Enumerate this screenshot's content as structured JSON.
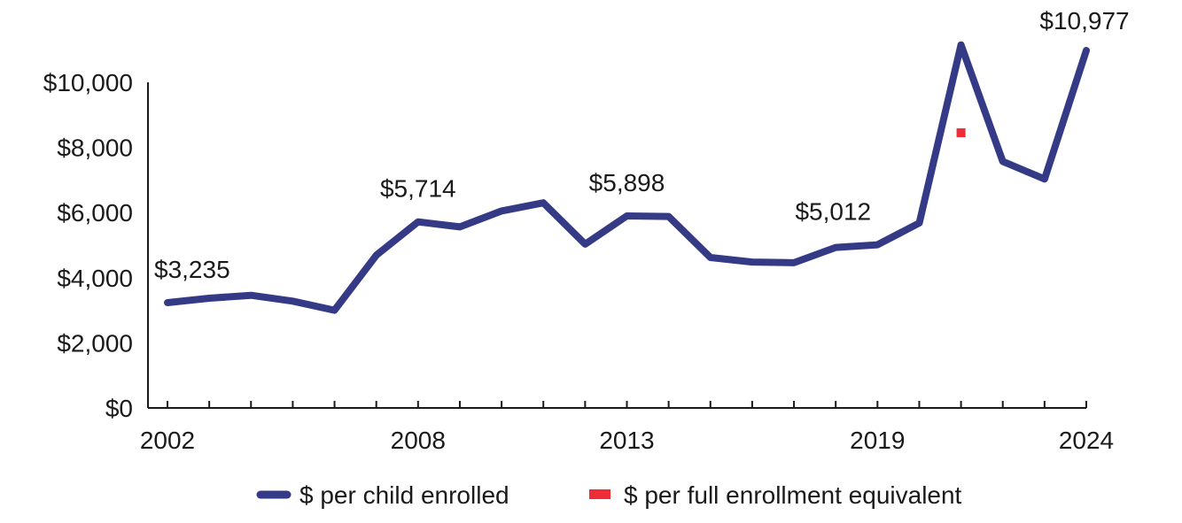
{
  "chart_data": {
    "type": "line",
    "x": [
      2002,
      2003,
      2004,
      2005,
      2006,
      2007,
      2008,
      2009,
      2010,
      2011,
      2012,
      2013,
      2014,
      2015,
      2016,
      2017,
      2018,
      2019,
      2020,
      2021,
      2022,
      2023,
      2024
    ],
    "series": [
      {
        "name": "$ per child enrolled",
        "color": "#353a87",
        "values": [
          3235,
          3370,
          3460,
          3280,
          3000,
          4690,
          5714,
          5560,
          6050,
          6300,
          5030,
          5898,
          5880,
          4620,
          4480,
          4460,
          4930,
          5012,
          5680,
          11150,
          7570,
          7030,
          10977
        ]
      },
      {
        "name": "$ per full enrollment equivalent",
        "color": "#ee2d36",
        "points": [
          {
            "x": 2021,
            "y": 8450
          }
        ]
      }
    ],
    "y_ticks": [
      "$0",
      "$2,000",
      "$4,000",
      "$6,000",
      "$8,000",
      "$10,000"
    ],
    "y_tick_values": [
      0,
      2000,
      4000,
      6000,
      8000,
      10000
    ],
    "x_tick_labels": [
      "2002",
      "2008",
      "2013",
      "2019",
      "2024"
    ],
    "x_tick_label_values": [
      2002,
      2008,
      2013,
      2019,
      2024
    ],
    "annotations": [
      {
        "x": 2002,
        "y": 3235,
        "text": "$3,235"
      },
      {
        "x": 2008,
        "y": 5714,
        "text": "$5,714"
      },
      {
        "x": 2013,
        "y": 5898,
        "text": "$5,898"
      },
      {
        "x": 2019,
        "y": 5012,
        "text": "$5,012"
      },
      {
        "x": 2024,
        "y": 10977,
        "text": "$10,977"
      }
    ],
    "ylim": [
      0,
      10000
    ],
    "xlim": [
      2002,
      2024
    ],
    "grid": false,
    "legend_position": "bottom"
  }
}
